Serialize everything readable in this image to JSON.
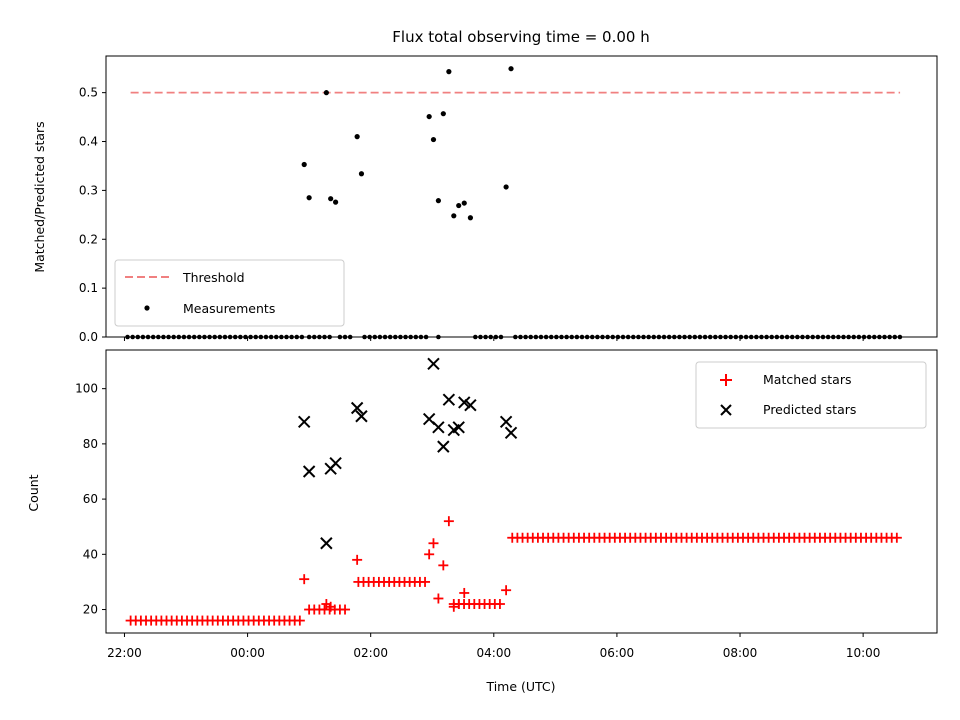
{
  "chart_data": [
    {
      "type": "scatter",
      "title": "Flux total observing time = 0.00 h",
      "xlabel": "",
      "ylabel": "Matched/Predicted stars",
      "ylim": [
        0,
        0.575
      ],
      "yticks": [
        "0.0",
        "0.1",
        "0.2",
        "0.3",
        "0.4",
        "0.5"
      ],
      "x_axis": "time (hours since 22:00 UTC)",
      "xlim": [
        -0.3,
        13.2
      ],
      "legend_position": "lower-left",
      "grid": false,
      "series": [
        {
          "name": "Threshold",
          "kind": "dashed-line",
          "color": "#f08080",
          "x": [
            0.1,
            12.6
          ],
          "y": [
            0.5,
            0.5
          ]
        },
        {
          "name": "Measurements",
          "kind": "dots",
          "color": "#000000",
          "points": [
            [
              2.92,
              0.353
            ],
            [
              3.0,
              0.285
            ],
            [
              3.28,
              0.5
            ],
            [
              3.35,
              0.283
            ],
            [
              3.43,
              0.276
            ],
            [
              3.78,
              0.41
            ],
            [
              3.85,
              0.334
            ],
            [
              4.95,
              0.451
            ],
            [
              5.02,
              0.404
            ],
            [
              5.1,
              0.279
            ],
            [
              5.18,
              0.457
            ],
            [
              5.27,
              0.543
            ],
            [
              5.35,
              0.248
            ],
            [
              5.43,
              0.269
            ],
            [
              5.52,
              0.274
            ],
            [
              5.62,
              0.244
            ],
            [
              6.2,
              0.307
            ],
            [
              6.28,
              0.549
            ]
          ],
          "zero_runs": [
            [
              0.05,
              2.9
            ],
            [
              3.0,
              3.35
            ],
            [
              3.5,
              3.7
            ],
            [
              3.9,
              4.9
            ],
            [
              5.1,
              5.15
            ],
            [
              5.7,
              6.15
            ],
            [
              6.35,
              12.6
            ]
          ]
        }
      ]
    },
    {
      "type": "scatter",
      "title": "",
      "xlabel": "Time (UTC)",
      "ylabel": "Count",
      "ylim": [
        11.5,
        114
      ],
      "yticks": [
        "20",
        "40",
        "60",
        "80",
        "100"
      ],
      "xticks": [
        "22:00",
        "00:00",
        "02:00",
        "04:00",
        "06:00",
        "08:00",
        "10:00"
      ],
      "legend_position": "upper-right",
      "grid": false,
      "series": [
        {
          "name": "Matched stars",
          "marker": "plus",
          "color": "#ff0000",
          "runs": [
            [
              0.1,
              2.9,
              16
            ],
            [
              3.0,
              3.6,
              20
            ],
            [
              3.8,
              4.9,
              30
            ],
            [
              5.35,
              6.15,
              22
            ],
            [
              6.3,
              12.6,
              46
            ]
          ],
          "points": [
            [
              2.92,
              31
            ],
            [
              3.28,
              22
            ],
            [
              3.35,
              21
            ],
            [
              3.78,
              38
            ],
            [
              4.95,
              40
            ],
            [
              5.02,
              44
            ],
            [
              5.1,
              24
            ],
            [
              5.18,
              36
            ],
            [
              5.27,
              52
            ],
            [
              5.35,
              21
            ],
            [
              5.43,
              22
            ],
            [
              5.52,
              26
            ],
            [
              6.2,
              27
            ]
          ]
        },
        {
          "name": "Predicted stars",
          "marker": "x",
          "color": "#000000",
          "points": [
            [
              2.92,
              88
            ],
            [
              3.0,
              70
            ],
            [
              3.28,
              44
            ],
            [
              3.35,
              71
            ],
            [
              3.43,
              73
            ],
            [
              3.78,
              93
            ],
            [
              3.85,
              90
            ],
            [
              4.95,
              89
            ],
            [
              5.02,
              109
            ],
            [
              5.1,
              86
            ],
            [
              5.18,
              79
            ],
            [
              5.27,
              96
            ],
            [
              5.35,
              85
            ],
            [
              5.43,
              86
            ],
            [
              5.52,
              95
            ],
            [
              5.62,
              94
            ],
            [
              6.2,
              88
            ],
            [
              6.28,
              84
            ]
          ]
        }
      ]
    }
  ]
}
